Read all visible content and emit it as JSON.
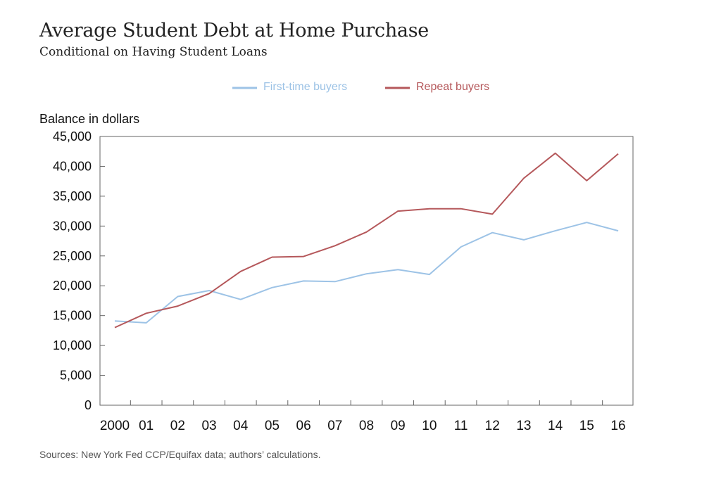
{
  "chart_data": {
    "type": "line",
    "title": "Average Student Debt at Home Purchase",
    "subtitle": "Conditional on Having Student Loans",
    "ylabel": "Balance in dollars",
    "xlabel": "",
    "ylim": [
      0,
      45000
    ],
    "yticks": [
      0,
      5000,
      10000,
      15000,
      20000,
      25000,
      30000,
      35000,
      40000,
      45000
    ],
    "ytick_labels": [
      "0",
      "5,000",
      "10,000",
      "15,000",
      "20,000",
      "25,000",
      "30,000",
      "35,000",
      "40,000",
      "45,000"
    ],
    "categories": [
      "2000",
      "01",
      "02",
      "03",
      "04",
      "05",
      "06",
      "07",
      "08",
      "09",
      "10",
      "11",
      "12",
      "13",
      "14",
      "15",
      "16"
    ],
    "grid": false,
    "legend_position": "top-center",
    "series": [
      {
        "name": "First-time buyers",
        "color": "#9dc3e6",
        "values": [
          14100,
          13800,
          18200,
          19200,
          17700,
          19700,
          20800,
          20700,
          22000,
          22700,
          21900,
          26500,
          28900,
          27700,
          29200,
          30600,
          29200
        ]
      },
      {
        "name": "Repeat buyers",
        "color": "#b5585b",
        "values": [
          13000,
          15400,
          16600,
          18700,
          22400,
          24800,
          24900,
          26700,
          29000,
          32500,
          32900,
          32900,
          32000,
          38000,
          42200,
          37600,
          42100
        ]
      }
    ],
    "source": "Sources: New York Fed CCP/Equifax data; authors’ calculations."
  }
}
